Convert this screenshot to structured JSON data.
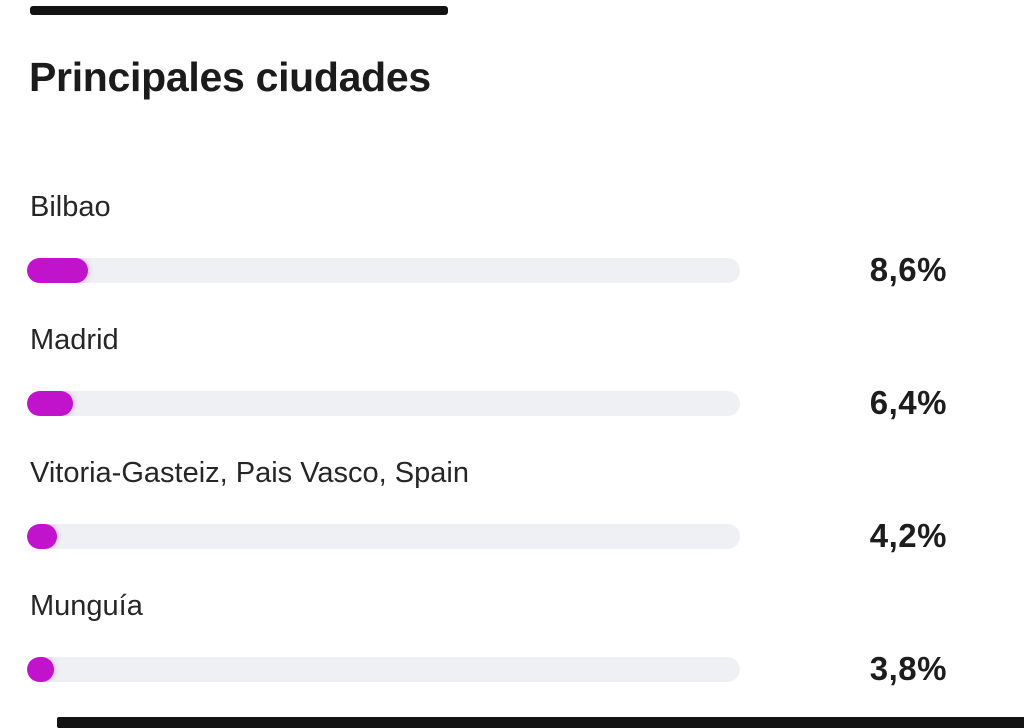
{
  "page": {
    "background": "#ffffff"
  },
  "chart_data": {
    "type": "bar",
    "orientation": "horizontal",
    "title": "Principales ciudades",
    "categories": [
      "Bilbao",
      "Madrid",
      "Vitoria-Gasteiz, Pais Vasco, Spain",
      "Munguía"
    ],
    "values": [
      8.6,
      6.4,
      4.2,
      3.8
    ],
    "value_labels": [
      "8,6%",
      "6,4%",
      "4,2%",
      "3,8%"
    ],
    "xlim": [
      0,
      100
    ],
    "grid": false,
    "legend": "none",
    "bar_color": "#c013cb",
    "track_color": "#eef0f3"
  },
  "colors": {
    "page_bg": "#ffffff",
    "accent": "#c013cb",
    "track": "#eef0f3",
    "title_text": "#1b1b1b",
    "label_text": "#262626",
    "value_text": "#1d1d1d",
    "edge_fragment": "#131313"
  }
}
